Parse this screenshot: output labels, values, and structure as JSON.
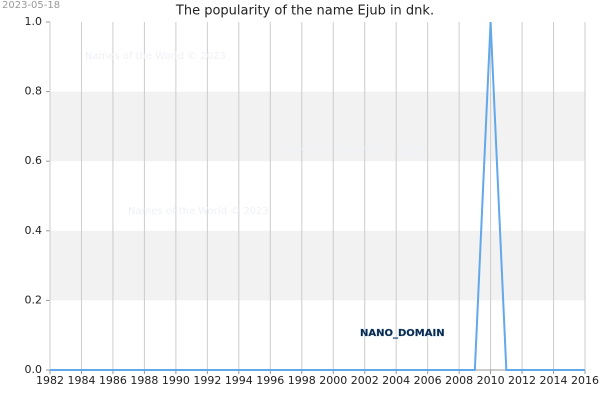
{
  "chart_data": {
    "type": "line",
    "title": "The popularity of the name Ejub in dnk.",
    "date_stamp": "2023-05-18",
    "watermarks": [
      "Names of the World © 2023",
      "Names of the World © 2023",
      "Names of the World © 2023"
    ],
    "annotation": "NANO_DOMAIN",
    "x": [
      1982,
      1983,
      1984,
      1985,
      1986,
      1987,
      1988,
      1989,
      1990,
      1991,
      1992,
      1993,
      1994,
      1995,
      1996,
      1997,
      1998,
      1999,
      2000,
      2001,
      2002,
      2003,
      2004,
      2005,
      2006,
      2007,
      2008,
      2009,
      2010,
      2011,
      2012,
      2013,
      2014,
      2015,
      2016
    ],
    "values": [
      0,
      0,
      0,
      0,
      0,
      0,
      0,
      0,
      0,
      0,
      0,
      0,
      0,
      0,
      0,
      0,
      0,
      0,
      0,
      0,
      0,
      0,
      0,
      0,
      0,
      0,
      0,
      0,
      1,
      0,
      0,
      0,
      0,
      0,
      0
    ],
    "color": "#62a8ea",
    "xlim": [
      1982,
      2016
    ],
    "xticks": [
      1982,
      1984,
      1986,
      1988,
      1990,
      1992,
      1994,
      1996,
      1998,
      2000,
      2002,
      2004,
      2006,
      2008,
      2010,
      2012,
      2014,
      2016
    ],
    "ylim": [
      0,
      1
    ],
    "yticks": [
      {
        "value": 0,
        "label": "0.0"
      },
      0.2,
      0.4,
      0.6,
      0.8,
      {
        "value": 1,
        "label": "1.0"
      }
    ],
    "grid": true
  }
}
